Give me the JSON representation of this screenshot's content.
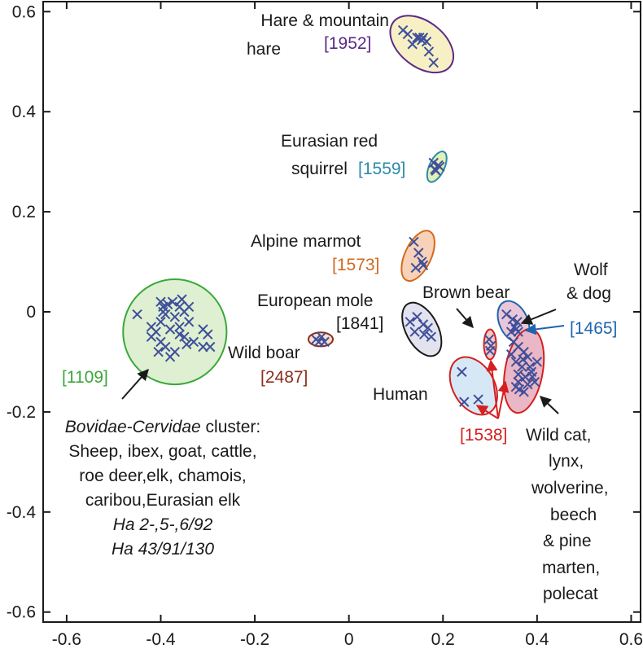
{
  "chart_data": {
    "type": "scatter",
    "title": "",
    "xlabel": "",
    "ylabel": "",
    "xlim": [
      -0.65,
      0.62
    ],
    "ylim": [
      -0.62,
      0.62
    ],
    "x_ticks": [
      -0.6,
      -0.4,
      -0.2,
      0,
      0.2,
      0.4,
      0.6
    ],
    "x_tick_labels": [
      "-0.6",
      "-0.4",
      "-0.2",
      "0",
      "0.2",
      "0.4",
      "0.6"
    ],
    "y_ticks": [
      0.6,
      0.4,
      0.2,
      0,
      -0.2,
      -0.4,
      -0.6
    ],
    "y_tick_labels": [
      "0.6",
      "0.4",
      "0.2",
      "0",
      "-0.2",
      "-0.4",
      "-0.6"
    ],
    "colors": {
      "marker": "#3f4f9a",
      "axis": "#1a1a1a"
    },
    "clusters": [
      {
        "name": "hare",
        "label_lines": [
          "Hare & mountain",
          "hare"
        ],
        "code": "[1952]",
        "code_color": "#5b2a86",
        "ellipse": {
          "cx": 0.155,
          "cy": 0.535,
          "rx": 0.048,
          "ry": 0.072,
          "angle": -52
        },
        "stroke": "#5b2a86",
        "fill": "#f6f0c4",
        "points": [
          [
            0.115,
            0.563
          ],
          [
            0.125,
            0.555
          ],
          [
            0.145,
            0.548
          ],
          [
            0.155,
            0.543
          ],
          [
            0.15,
            0.548
          ],
          [
            0.158,
            0.548
          ],
          [
            0.165,
            0.54
          ],
          [
            0.135,
            0.535
          ],
          [
            0.17,
            0.52
          ],
          [
            0.18,
            0.498
          ]
        ]
      },
      {
        "name": "squirrel",
        "label_lines": [
          "Eurasian red",
          "squirrel"
        ],
        "code": "[1559]",
        "code_color": "#2b8aa8",
        "ellipse": {
          "cx": 0.187,
          "cy": 0.29,
          "rx": 0.016,
          "ry": 0.033,
          "angle": 25
        },
        "stroke": "#2b8aa8",
        "fill": "#e2efb8",
        "points": [
          [
            0.18,
            0.298
          ],
          [
            0.19,
            0.293
          ],
          [
            0.183,
            0.285
          ],
          [
            0.193,
            0.29
          ],
          [
            0.185,
            0.282
          ]
        ]
      },
      {
        "name": "marmot",
        "label_lines": [
          "Alpine marmot"
        ],
        "code": "[1573]",
        "code_color": "#d4691e",
        "ellipse": {
          "cx": 0.147,
          "cy": 0.112,
          "rx": 0.028,
          "ry": 0.054,
          "angle": 25
        },
        "stroke": "#d4691e",
        "fill": "#f7d2b8",
        "points": [
          [
            0.138,
            0.14
          ],
          [
            0.148,
            0.118
          ],
          [
            0.155,
            0.1
          ],
          [
            0.142,
            0.088
          ],
          [
            0.158,
            0.093
          ]
        ]
      },
      {
        "name": "mole",
        "label_lines": [
          "European mole"
        ],
        "code": "[1841]",
        "code_color": "#1a1a1a",
        "ellipse": {
          "cx": 0.155,
          "cy": -0.035,
          "rx": 0.034,
          "ry": 0.058,
          "angle": -28
        },
        "stroke": "#1a1a1a",
        "fill": "#e3e3ef",
        "points": [
          [
            0.13,
            -0.02
          ],
          [
            0.145,
            -0.01
          ],
          [
            0.158,
            -0.025
          ],
          [
            0.168,
            -0.032
          ],
          [
            0.14,
            -0.04
          ],
          [
            0.16,
            -0.045
          ],
          [
            0.175,
            -0.05
          ]
        ]
      },
      {
        "name": "boar",
        "label_lines": [
          "Wild boar"
        ],
        "code": "[2487]",
        "code_color": "#8b2e1e",
        "ellipse": {
          "cx": -0.06,
          "cy": -0.055,
          "rx": 0.026,
          "ry": 0.014,
          "angle": 0
        },
        "stroke": "#8b2e1e",
        "fill": "#f7dfcf",
        "points": [
          [
            -0.07,
            -0.055
          ],
          [
            -0.058,
            -0.05
          ],
          [
            -0.052,
            -0.06
          ],
          [
            -0.064,
            -0.06
          ]
        ]
      },
      {
        "name": "bovidae",
        "label_lines": [],
        "code": "[1109]",
        "code_color": "#3aa83a",
        "ellipse": {
          "cx": -0.37,
          "cy": -0.04,
          "rx": 0.11,
          "ry": 0.105,
          "angle": 0
        },
        "stroke": "#3aa83a",
        "fill": "#dff0d2",
        "points": [
          [
            -0.45,
            -0.005
          ],
          [
            -0.42,
            -0.03
          ],
          [
            -0.4,
            0.02
          ],
          [
            -0.395,
            0.01
          ],
          [
            -0.385,
            0.015
          ],
          [
            -0.375,
            0.02
          ],
          [
            -0.36,
            0.01
          ],
          [
            -0.355,
            0.025
          ],
          [
            -0.39,
            -0.005
          ],
          [
            -0.37,
            -0.01
          ],
          [
            -0.35,
            0.0
          ],
          [
            -0.34,
            0.01
          ],
          [
            -0.4,
            -0.02
          ],
          [
            -0.38,
            -0.035
          ],
          [
            -0.36,
            -0.03
          ],
          [
            -0.42,
            -0.05
          ],
          [
            -0.4,
            -0.06
          ],
          [
            -0.39,
            -0.07
          ],
          [
            -0.37,
            -0.08
          ],
          [
            -0.35,
            -0.05
          ],
          [
            -0.345,
            -0.065
          ],
          [
            -0.33,
            -0.06
          ],
          [
            -0.31,
            -0.035
          ],
          [
            -0.3,
            -0.045
          ],
          [
            -0.31,
            -0.07
          ],
          [
            -0.295,
            -0.07
          ],
          [
            -0.38,
            -0.09
          ],
          [
            -0.36,
            -0.045
          ],
          [
            -0.405,
            -0.08
          ],
          [
            -0.34,
            -0.02
          ],
          [
            -0.395,
            0.0
          ],
          [
            -0.41,
            -0.04
          ]
        ]
      },
      {
        "name": "brownbear",
        "label_lines": [
          "Brown bear"
        ],
        "code": "",
        "code_color": "#d42020",
        "ellipse": {
          "cx": 0.3,
          "cy": -0.065,
          "rx": 0.013,
          "ry": 0.03,
          "angle": 0
        },
        "stroke": "#d42020",
        "fill": "#f3c6c6",
        "points": [
          [
            0.298,
            -0.055
          ],
          [
            0.302,
            -0.068
          ],
          [
            0.3,
            -0.078
          ]
        ]
      },
      {
        "name": "wolf",
        "label_lines": [
          "Wolf",
          "& dog"
        ],
        "code": "[1465]",
        "code_color": "#1e64b0",
        "ellipse": {
          "cx": 0.35,
          "cy": -0.02,
          "rx": 0.03,
          "ry": 0.044,
          "angle": -25
        },
        "stroke": "#1e64b0",
        "fill": "#eac7d8",
        "points": [
          [
            0.335,
            -0.005
          ],
          [
            0.348,
            -0.015
          ],
          [
            0.358,
            -0.02
          ],
          [
            0.352,
            -0.03
          ],
          [
            0.345,
            -0.04
          ],
          [
            0.36,
            -0.04
          ],
          [
            0.355,
            -0.035
          ]
        ]
      },
      {
        "name": "human",
        "label_lines": [
          "Human"
        ],
        "code": "",
        "code_color": "#d42020",
        "ellipse": {
          "cx": 0.265,
          "cy": -0.148,
          "rx": 0.044,
          "ry": 0.062,
          "angle": -30
        },
        "stroke": "#d42020",
        "fill": "#d6e8f5",
        "points": [
          [
            0.24,
            -0.12
          ],
          [
            0.245,
            -0.18
          ],
          [
            0.275,
            -0.175
          ]
        ]
      },
      {
        "name": "wildcat",
        "label_lines": [
          "Wild cat,",
          "lynx,",
          "wolverine,",
          "beech",
          "& pine",
          "marten,",
          "polecat"
        ],
        "code": "",
        "code_color": "#d42020",
        "ellipse": {
          "cx": 0.372,
          "cy": -0.118,
          "rx": 0.04,
          "ry": 0.085,
          "angle": 10
        },
        "stroke": "#d42020",
        "fill": "#e9b7c5",
        "points": [
          [
            0.35,
            -0.06
          ],
          [
            0.36,
            -0.07
          ],
          [
            0.372,
            -0.08
          ],
          [
            0.38,
            -0.09
          ],
          [
            0.355,
            -0.1
          ],
          [
            0.368,
            -0.11
          ],
          [
            0.385,
            -0.11
          ],
          [
            0.36,
            -0.125
          ],
          [
            0.375,
            -0.13
          ],
          [
            0.39,
            -0.13
          ],
          [
            0.36,
            -0.14
          ],
          [
            0.38,
            -0.145
          ],
          [
            0.395,
            -0.14
          ],
          [
            0.355,
            -0.15
          ],
          [
            0.372,
            -0.16
          ],
          [
            0.388,
            -0.12
          ],
          [
            0.345,
            -0.085
          ],
          [
            0.4,
            -0.1
          ],
          [
            0.37,
            -0.095
          ],
          [
            0.362,
            -0.155
          ]
        ]
      }
    ],
    "bovidae_text": {
      "line1_italic": "Bovidae-Cervidae",
      "line1_rest": " cluster:",
      "lines": [
        "Sheep, ibex, goat, cattle,",
        "roe deer,elk, chamois,",
        "caribou,Eurasian elk"
      ],
      "italic_lines": [
        "Ha 2-,5-,6/92",
        "Ha 43/91/130"
      ]
    },
    "shared_code": "[1538]",
    "shared_code_color": "#d42020"
  }
}
